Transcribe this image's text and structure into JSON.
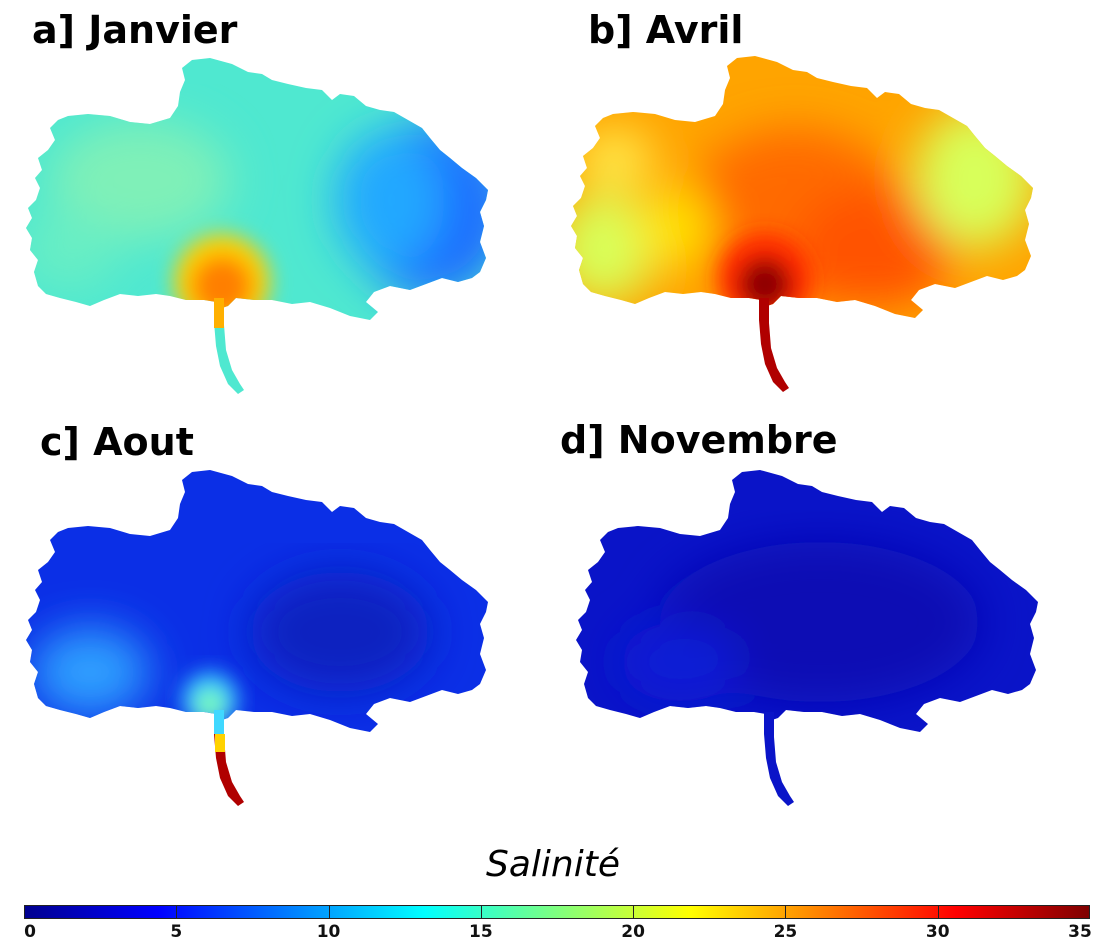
{
  "panels": [
    {
      "id": "a",
      "title": "a] Janvier"
    },
    {
      "id": "b",
      "title": "b] Avril"
    },
    {
      "id": "c",
      "title": "c] Aout"
    },
    {
      "id": "d",
      "title": "d] Novembre"
    }
  ],
  "colorbar": {
    "title": "Salinité",
    "min": 0,
    "max": 35,
    "ticks": [
      "0",
      "5",
      "10",
      "15",
      "20",
      "25",
      "30",
      "35"
    ],
    "colormap": "jet"
  },
  "colors": {
    "janvier_base": "#4fe8d0",
    "janvier_east": "#1d6bff",
    "janvier_mouth": "#ff7f00",
    "avril_base": "#ffa400",
    "avril_center": "#ff3b00",
    "avril_mouth": "#8f0000",
    "avril_edges": "#d8ff5a",
    "aout_base": "#0b2fe6",
    "aout_west": "#2f9fff",
    "aout_mouth": "#7fffaa",
    "aout_river": "#b00000",
    "novembre_base": "#0a14c8"
  }
}
